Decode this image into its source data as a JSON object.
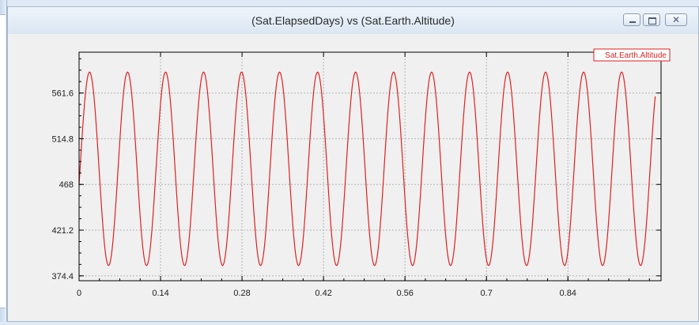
{
  "window": {
    "title": "(Sat.ElapsedDays) vs (Sat.Earth.Altitude)",
    "buttons": [
      "minimize",
      "maximize",
      "close"
    ],
    "close_glyph": "✕"
  },
  "colors": {
    "series": "#e02020",
    "grid": "#b4b4b4",
    "axis": "#000000",
    "legend_text": "#e02020"
  },
  "chart_data": {
    "type": "line",
    "title": "(Sat.ElapsedDays) vs (Sat.Earth.Altitude)",
    "xlabel": "",
    "ylabel": "",
    "xlim": [
      0,
      1.0
    ],
    "ylim": [
      369.4,
      603.4
    ],
    "x_ticks": [
      "0",
      "0.14",
      "0.28",
      "0.42",
      "0.56",
      "0.7",
      "0.84"
    ],
    "x_tick_values": [
      0,
      0.14,
      0.28,
      0.42,
      0.56,
      0.7,
      0.84
    ],
    "y_ticks": [
      "374.4",
      "421.2",
      "468",
      "514.8",
      "561.6"
    ],
    "y_tick_values": [
      374.4,
      421.2,
      468,
      514.8,
      561.6
    ],
    "grid": true,
    "legend_position": "top-right",
    "series": [
      {
        "name": "Sat.Earth.Altitude",
        "period_days": 0.0653,
        "min": 385,
        "max": 583,
        "x_start": 0,
        "x_end": 0.99,
        "y_start": 468
      }
    ]
  }
}
